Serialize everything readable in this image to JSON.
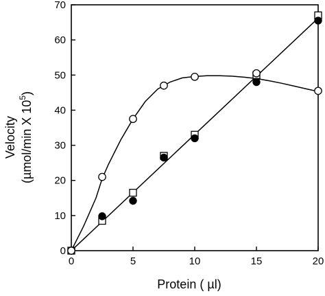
{
  "chart_data": {
    "type": "scatter",
    "xlabel": "Protein ( µl)",
    "ylabel_line1": "Velocity",
    "ylabel_line2": "(µmol/min X 10",
    "ylabel_superscript": "5",
    "ylabel_close": ")",
    "xlim": [
      0,
      20
    ],
    "ylim": [
      0,
      70
    ],
    "x_ticks": [
      0,
      5,
      10,
      15,
      20
    ],
    "x_tick_labels": [
      "0",
      "5",
      "10",
      "15",
      "20"
    ],
    "y_ticks": [
      0,
      10,
      20,
      30,
      40,
      50,
      60,
      70
    ],
    "y_tick_labels": [
      "0",
      "10",
      "20",
      "30",
      "40",
      "50",
      "60",
      "70"
    ],
    "grid": false,
    "series": [
      {
        "marker": "open-circle",
        "x": [
          0,
          2.5,
          5,
          7.5,
          10,
          15,
          20
        ],
        "y": [
          0,
          21,
          37.5,
          47,
          49.5,
          50.5,
          45.5
        ],
        "curve": "smooth-saturation",
        "curve_x": [
          0,
          1,
          2,
          2.5,
          3,
          4,
          5,
          6,
          7,
          7.5,
          8,
          9,
          10,
          11,
          12,
          13,
          14,
          15,
          16,
          17,
          18,
          19,
          20
        ],
        "curve_y": [
          0,
          7,
          15,
          20.5,
          24.5,
          31.5,
          37.5,
          42.5,
          46,
          47,
          48,
          49.2,
          49.6,
          49.8,
          49.8,
          49.7,
          49.4,
          49,
          48.4,
          47.7,
          46.9,
          46.1,
          45.3
        ]
      },
      {
        "marker": "filled-circle",
        "x": [
          0,
          2.5,
          5,
          7.5,
          10,
          15,
          20
        ],
        "y": [
          0,
          9.8,
          14.2,
          26.5,
          32,
          48,
          65.5
        ],
        "curve": "linear-fit"
      },
      {
        "marker": "open-square",
        "x": [
          0,
          2.5,
          5,
          7.5,
          10,
          15,
          20
        ],
        "y": [
          0,
          8.5,
          16.5,
          27,
          33,
          50,
          67
        ],
        "curve": "linear-fit"
      }
    ],
    "fit_line": {
      "x": [
        0,
        20
      ],
      "y": [
        0,
        66.2
      ]
    },
    "colors": {
      "line": "#000000",
      "marker_fill_filled": "#000000",
      "marker_fill_open": "#ffffff"
    }
  }
}
